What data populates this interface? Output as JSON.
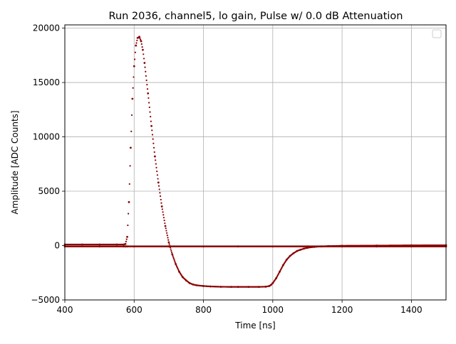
{
  "colors": {
    "series": "#8b0000",
    "grid": "#b0b0b0",
    "axis": "#000000",
    "background": "#ffffff"
  },
  "chart_data": {
    "type": "scatter",
    "title": "Run 2036, channel5, lo gain, Pulse w/ 0.0 dB Attenuation",
    "xlabel": "Time [ns]",
    "ylabel": "Amplitude [ADC Counts]",
    "xlim": [
      400,
      1500
    ],
    "ylim": [
      -5000,
      20300
    ],
    "xticks": [
      400,
      600,
      800,
      1000,
      1200,
      1400
    ],
    "yticks": [
      -5000,
      0,
      5000,
      10000,
      15000,
      20000
    ],
    "xtick_labels": [
      "400",
      "600",
      "800",
      "1000",
      "1200",
      "1400"
    ],
    "ytick_labels": [
      "−5000",
      "0",
      "5000",
      "10000",
      "15000",
      "20000"
    ],
    "grid": true,
    "legend": {
      "placement": "top-right",
      "entries": []
    },
    "series": [
      {
        "marker": "point",
        "x": [
          400,
          450,
          500,
          550,
          570,
          575,
          580,
          585,
          590,
          595,
          600,
          605,
          610,
          615,
          620,
          625,
          630,
          640,
          650,
          660,
          670,
          680,
          690,
          700,
          710,
          720,
          730,
          740,
          750,
          760,
          770,
          780,
          800,
          820,
          850,
          880,
          900,
          930,
          960,
          980,
          990,
          995,
          1000,
          1010,
          1020,
          1030,
          1040,
          1050,
          1060,
          1070,
          1080,
          1090,
          1100,
          1120,
          1140,
          1160,
          1200,
          1300,
          1400,
          1500
        ],
        "y": [
          100,
          100,
          100,
          100,
          100,
          150,
          800,
          4000,
          9000,
          13500,
          16500,
          18400,
          19100,
          19200,
          18800,
          18000,
          16800,
          14000,
          11000,
          8200,
          5800,
          3600,
          1800,
          300,
          -800,
          -1700,
          -2400,
          -2900,
          -3200,
          -3450,
          -3580,
          -3650,
          -3720,
          -3760,
          -3790,
          -3800,
          -3800,
          -3800,
          -3800,
          -3780,
          -3720,
          -3620,
          -3450,
          -3000,
          -2400,
          -1800,
          -1300,
          -950,
          -700,
          -500,
          -380,
          -280,
          -200,
          -120,
          -80,
          -50,
          -20,
          0,
          20,
          30
        ]
      },
      {
        "marker": "point",
        "x": [
          400,
          500,
          570,
          575,
          580,
          600,
          700,
          800,
          900,
          1000,
          1100,
          1200,
          1300,
          1400,
          1500
        ],
        "y": [
          -80,
          -80,
          -80,
          -80,
          -80,
          -80,
          -80,
          -80,
          -80,
          -80,
          -80,
          -80,
          -80,
          -80,
          -80
        ]
      }
    ]
  }
}
